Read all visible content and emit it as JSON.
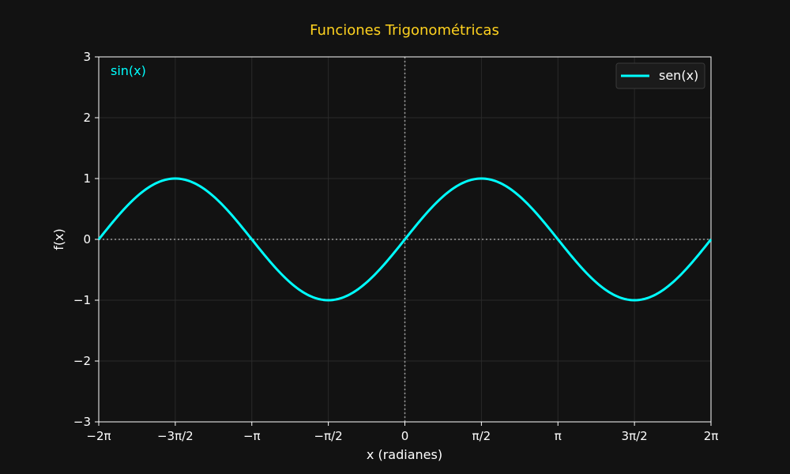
{
  "chart_data": {
    "type": "line",
    "title": "Funciones Trigonométricas",
    "xlabel": "x (radianes)",
    "ylabel": "f(x)",
    "xlim": [
      -6.283185,
      6.283185
    ],
    "ylim": [
      -3,
      3
    ],
    "xticks": [
      {
        "value": -6.283185,
        "label": "−2π"
      },
      {
        "value": -4.712389,
        "label": "−3π/2"
      },
      {
        "value": -3.141593,
        "label": "−π"
      },
      {
        "value": -1.570796,
        "label": "−π/2"
      },
      {
        "value": 0,
        "label": "0"
      },
      {
        "value": 1.570796,
        "label": "π/2"
      },
      {
        "value": 3.141593,
        "label": "π"
      },
      {
        "value": 4.712389,
        "label": "3π/2"
      },
      {
        "value": 6.283185,
        "label": "2π"
      }
    ],
    "yticks": [
      {
        "value": -3,
        "label": "−3"
      },
      {
        "value": -2,
        "label": "−2"
      },
      {
        "value": -1,
        "label": "−1"
      },
      {
        "value": 0,
        "label": "0"
      },
      {
        "value": 1,
        "label": "1"
      },
      {
        "value": 2,
        "label": "2"
      },
      {
        "value": 3,
        "label": "3"
      }
    ],
    "grid": true,
    "reference_lines": {
      "x": 0,
      "y": 0,
      "style": "dotted"
    },
    "legend": {
      "position": "top-right",
      "entries": [
        "sen(x)"
      ]
    },
    "annotation": {
      "text": "sin(x)",
      "position": "top-left"
    },
    "series": [
      {
        "name": "sen(x)",
        "color": "#00ffff",
        "x": [
          -6.2832,
          -5.4978,
          -4.7124,
          -3.927,
          -3.1416,
          -2.3562,
          -1.5708,
          -0.7854,
          0,
          0.7854,
          1.5708,
          2.3562,
          3.1416,
          3.927,
          4.7124,
          5.4978,
          6.2832
        ],
        "y": [
          0,
          0.7071,
          1,
          0.7071,
          0,
          -0.7071,
          -1,
          -0.7071,
          0,
          0.7071,
          1,
          0.7071,
          0,
          -0.7071,
          -1,
          -0.7071,
          0
        ]
      }
    ],
    "colors": {
      "background": "#121212",
      "title": "#ffd21f",
      "axes": "#ffffff",
      "grid": "#2a2a2a",
      "reference": "#9a9a9a",
      "legend_bg": "#1b1b1b",
      "legend_border": "#3a3a3a"
    }
  }
}
